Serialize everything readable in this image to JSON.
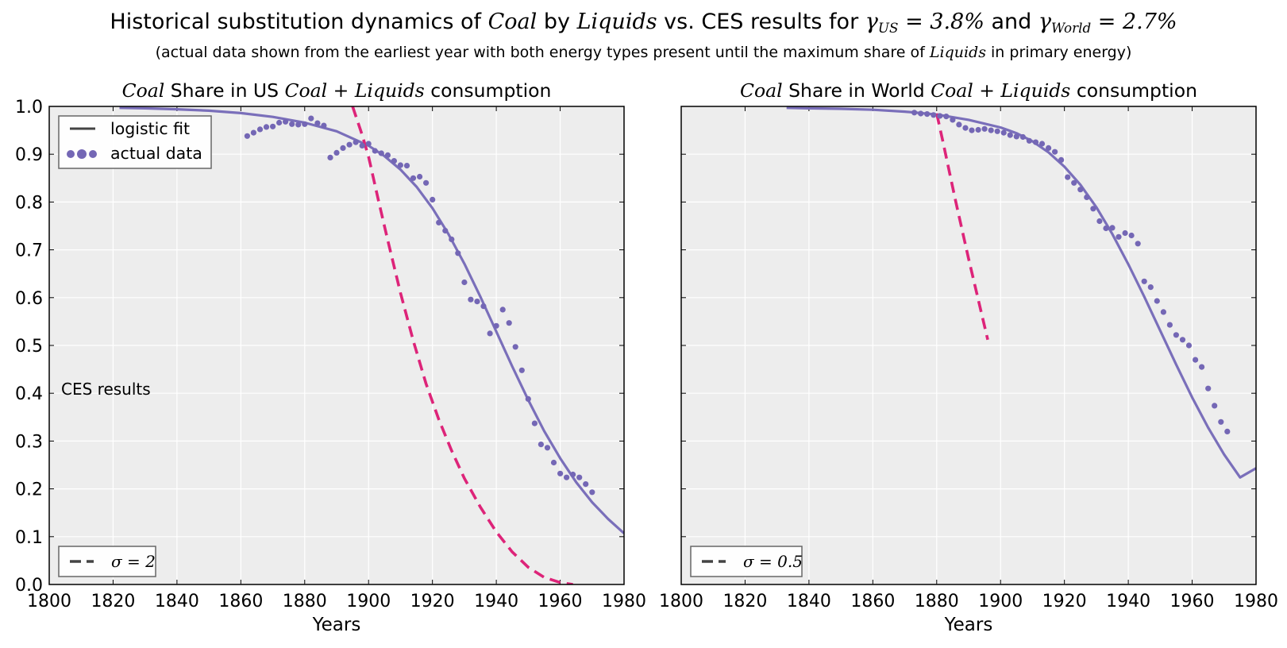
{
  "header": {
    "title_parts": [
      "Historical substitution dynamics of ",
      "Coal",
      " by ",
      "Liquids",
      " vs. CES results for ",
      "γ",
      "US",
      " = 3.8%",
      " and ",
      "γ",
      "World",
      " = 2.7%"
    ],
    "subtitle_parts": [
      "(actual data shown from the earliest year with both energy types present until the maximum share of ",
      "Liquids",
      " in primary energy)"
    ]
  },
  "colors": {
    "logistic": "#7a6fba",
    "data_points": "#7467b5",
    "ces": "#dd2479",
    "plot_background": "#ededed",
    "grid": "#ffffff",
    "legend_line": "#444444"
  },
  "chart_data": [
    {
      "type": "line",
      "title_parts": [
        "Coal",
        " Share in US ",
        "Coal + Liquids",
        " consumption"
      ],
      "xlabel": "Years",
      "ylabel": "",
      "xlim": [
        1800,
        1980
      ],
      "ylim": [
        0.0,
        1.0
      ],
      "xticks": [
        "1800",
        "1820",
        "1840",
        "1860",
        "1880",
        "1900",
        "1920",
        "1940",
        "1960",
        "1980"
      ],
      "yticks": [
        "0.0",
        "0.1",
        "0.2",
        "0.3",
        "0.4",
        "0.5",
        "0.6",
        "0.7",
        "0.8",
        "0.9",
        "1.0"
      ],
      "grid": true,
      "legend": [
        {
          "label": "logistic fit",
          "style": "solid-line",
          "placement": "top-left"
        },
        {
          "label": "actual data",
          "style": "dots",
          "placement": "top-left"
        }
      ],
      "ces_legend": {
        "label": "σ = 2",
        "style": "dashed",
        "placement": "bottom-left"
      },
      "annotation": "CES results",
      "logistic_fit": {
        "x": [
          1822,
          1830,
          1840,
          1850,
          1860,
          1870,
          1880,
          1890,
          1900,
          1905,
          1910,
          1915,
          1920,
          1925,
          1930,
          1935,
          1940,
          1945,
          1950,
          1955,
          1960,
          1965,
          1970,
          1975,
          1980
        ],
        "y": [
          0.997,
          0.996,
          0.994,
          0.991,
          0.986,
          0.978,
          0.966,
          0.948,
          0.918,
          0.896,
          0.868,
          0.832,
          0.787,
          0.733,
          0.671,
          0.602,
          0.529,
          0.456,
          0.386,
          0.321,
          0.264,
          0.214,
          0.172,
          0.137,
          0.107
        ]
      },
      "actual_data": {
        "x": [
          1862,
          1864,
          1866,
          1868,
          1870,
          1872,
          1874,
          1876,
          1878,
          1880,
          1882,
          1884,
          1886,
          1888,
          1890,
          1892,
          1894,
          1896,
          1898,
          1900,
          1902,
          1904,
          1906,
          1908,
          1910,
          1912,
          1914,
          1916,
          1918,
          1920,
          1922,
          1924,
          1926,
          1928,
          1930,
          1932,
          1934,
          1936,
          1938,
          1940,
          1942,
          1944,
          1946,
          1948,
          1950,
          1952,
          1954,
          1956,
          1958,
          1960,
          1962,
          1964,
          1966,
          1968,
          1970
        ],
        "y": [
          0.938,
          0.945,
          0.952,
          0.957,
          0.958,
          0.966,
          0.968,
          0.963,
          0.962,
          0.963,
          0.975,
          0.965,
          0.96,
          0.893,
          0.903,
          0.913,
          0.92,
          0.925,
          0.918,
          0.922,
          0.907,
          0.902,
          0.898,
          0.886,
          0.877,
          0.876,
          0.85,
          0.853,
          0.84,
          0.805,
          0.757,
          0.74,
          0.722,
          0.693,
          0.632,
          0.596,
          0.592,
          0.582,
          0.525,
          0.541,
          0.575,
          0.547,
          0.497,
          0.448,
          0.388,
          0.337,
          0.293,
          0.286,
          0.255,
          0.232,
          0.224,
          0.23,
          0.224,
          0.21,
          0.193
        ]
      },
      "ces_curve": {
        "label": "σ = 2",
        "x": [
          1895,
          1898,
          1900,
          1903,
          1906,
          1910,
          1914,
          1918,
          1922,
          1926,
          1930,
          1935,
          1940,
          1945,
          1950,
          1955,
          1960,
          1964
        ],
        "y": [
          1.0,
          0.94,
          0.895,
          0.806,
          0.72,
          0.61,
          0.51,
          0.42,
          0.345,
          0.28,
          0.222,
          0.162,
          0.11,
          0.068,
          0.036,
          0.015,
          0.004,
          0.0
        ]
      }
    },
    {
      "type": "line",
      "title_parts": [
        "Coal",
        " Share in World ",
        "Coal + Liquids",
        " consumption"
      ],
      "xlabel": "Years",
      "ylabel": "",
      "xlim": [
        1800,
        1980
      ],
      "ylim": [
        0.0,
        1.0
      ],
      "xticks": [
        "1800",
        "1820",
        "1840",
        "1860",
        "1880",
        "1900",
        "1920",
        "1940",
        "1960",
        "1980"
      ],
      "yticks": [
        "0.0",
        "0.1",
        "0.2",
        "0.3",
        "0.4",
        "0.5",
        "0.6",
        "0.7",
        "0.8",
        "0.9",
        "1.0"
      ],
      "grid": true,
      "ces_legend": {
        "label": "σ = 0.5",
        "style": "dashed",
        "placement": "bottom-left"
      },
      "logistic_fit": {
        "x": [
          1833,
          1840,
          1850,
          1860,
          1870,
          1880,
          1890,
          1900,
          1905,
          1910,
          1915,
          1920,
          1925,
          1930,
          1935,
          1940,
          1945,
          1950,
          1955,
          1960,
          1965,
          1970,
          1975,
          1980
        ],
        "y": [
          0.997,
          0.996,
          0.995,
          0.993,
          0.989,
          0.983,
          0.972,
          0.956,
          0.944,
          0.927,
          0.904,
          0.874,
          0.836,
          0.789,
          0.733,
          0.67,
          0.602,
          0.531,
          0.46,
          0.391,
          0.328,
          0.272,
          0.224,
          0.243
        ]
      },
      "actual_data": {
        "x": [
          1873,
          1875,
          1877,
          1879,
          1881,
          1883,
          1885,
          1887,
          1889,
          1891,
          1893,
          1895,
          1897,
          1899,
          1901,
          1903,
          1905,
          1907,
          1909,
          1911,
          1913,
          1915,
          1917,
          1919,
          1921,
          1923,
          1925,
          1927,
          1929,
          1931,
          1933,
          1935,
          1937,
          1939,
          1941,
          1943,
          1945,
          1947,
          1949,
          1951,
          1953,
          1955,
          1957,
          1959,
          1961,
          1963,
          1965,
          1967,
          1969,
          1971
        ],
        "y": [
          0.987,
          0.985,
          0.984,
          0.982,
          0.98,
          0.979,
          0.972,
          0.962,
          0.955,
          0.95,
          0.951,
          0.953,
          0.95,
          0.948,
          0.945,
          0.94,
          0.937,
          0.936,
          0.928,
          0.925,
          0.922,
          0.913,
          0.905,
          0.888,
          0.852,
          0.84,
          0.826,
          0.81,
          0.786,
          0.76,
          0.745,
          0.746,
          0.727,
          0.735,
          0.73,
          0.713,
          0.634,
          0.622,
          0.593,
          0.57,
          0.543,
          0.522,
          0.512,
          0.5,
          0.47,
          0.455,
          0.41,
          0.374,
          0.34,
          0.32
        ]
      },
      "ces_curve": {
        "label": "σ = 0.5",
        "x": [
          1880,
          1882,
          1884,
          1886,
          1888,
          1890,
          1892,
          1894,
          1896
        ],
        "y": [
          0.985,
          0.925,
          0.862,
          0.8,
          0.74,
          0.681,
          0.625,
          0.568,
          0.512
        ]
      }
    }
  ]
}
